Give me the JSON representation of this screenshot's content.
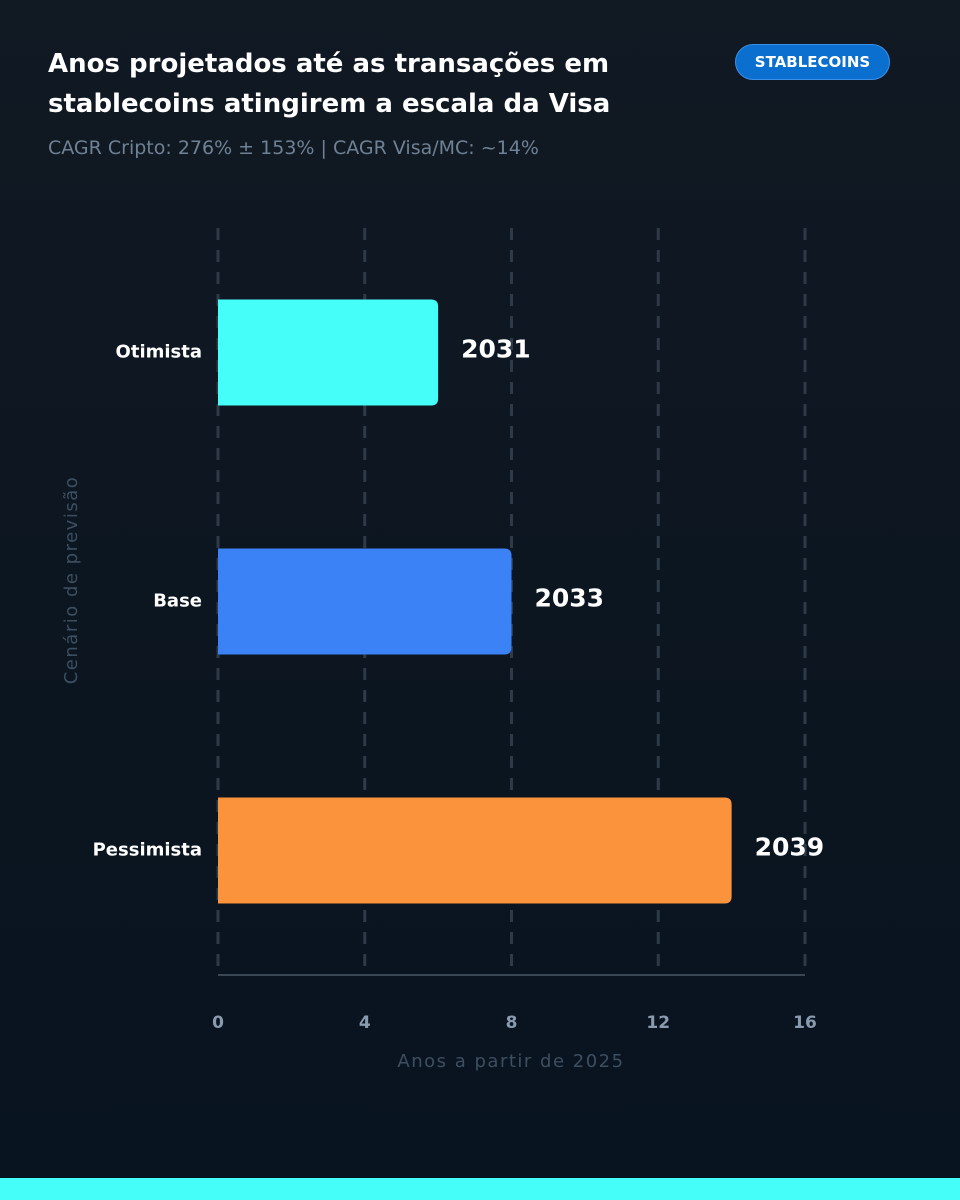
{
  "chart_data": {
    "type": "hbar",
    "title": "Anos projetados até as transações em stablecoins atingirem a escala da Visa",
    "subtitle": "CAGR Cripto: 276% ± 153% | CAGR Visa/MC: ~14%",
    "badge": "STABLECOINS",
    "categories": [
      "Otimista",
      "Base",
      "Pessimista"
    ],
    "values": [
      6,
      8,
      14
    ],
    "value_labels": [
      "2031",
      "2033",
      "2039"
    ],
    "colors": [
      "#45fef9",
      "#3b82f6",
      "#fb933c"
    ],
    "xlabel": "Anos a partir de 2025",
    "ylabel": "Cenário de previsão",
    "xlim": [
      0,
      16
    ],
    "xticks": [
      0,
      4,
      8,
      12,
      16
    ],
    "grid": true
  }
}
